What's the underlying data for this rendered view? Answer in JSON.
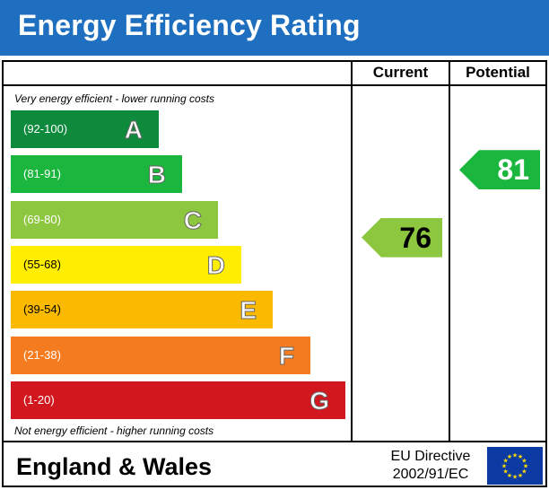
{
  "title": "Energy Efficiency Rating",
  "columns": {
    "current": "Current",
    "potential": "Potential"
  },
  "notes": {
    "top": "Very energy efficient - lower running costs",
    "bottom": "Not energy efficient - higher running costs"
  },
  "footer": {
    "region": "England & Wales",
    "directive_line1": "EU Directive",
    "directive_line2": "2002/91/EC"
  },
  "colors": {
    "header": "#1e6fbf",
    "band_a": "#0e8a3c",
    "band_b": "#1bb63e",
    "band_c": "#8dc63f",
    "band_d": "#ffee00",
    "band_e": "#fbb900",
    "band_f": "#f47b20",
    "band_g": "#d2171f",
    "eu_flag": "#0b3aa3",
    "eu_stars": "#ffdd00"
  },
  "chart_data": {
    "type": "bar",
    "bands": [
      {
        "letter": "A",
        "range": "(92-100)",
        "color": "#0e8a3c",
        "range_color": "#ffffff"
      },
      {
        "letter": "B",
        "range": "(81-91)",
        "color": "#1bb63e",
        "range_color": "#ffffff"
      },
      {
        "letter": "C",
        "range": "(69-80)",
        "color": "#8dc63f",
        "range_color": "#ffffff"
      },
      {
        "letter": "D",
        "range": "(55-68)",
        "color": "#ffee00",
        "range_color": "#000000"
      },
      {
        "letter": "E",
        "range": "(39-54)",
        "color": "#fbb900",
        "range_color": "#000000"
      },
      {
        "letter": "F",
        "range": "(21-38)",
        "color": "#f47b20",
        "range_color": "#ffffff"
      },
      {
        "letter": "G",
        "range": "(1-20)",
        "color": "#d2171f",
        "range_color": "#ffffff"
      }
    ],
    "current": {
      "value": 76,
      "band": "C",
      "color": "#8dc63f"
    },
    "potential": {
      "value": 81,
      "band": "B",
      "color": "#1bb63e"
    }
  }
}
